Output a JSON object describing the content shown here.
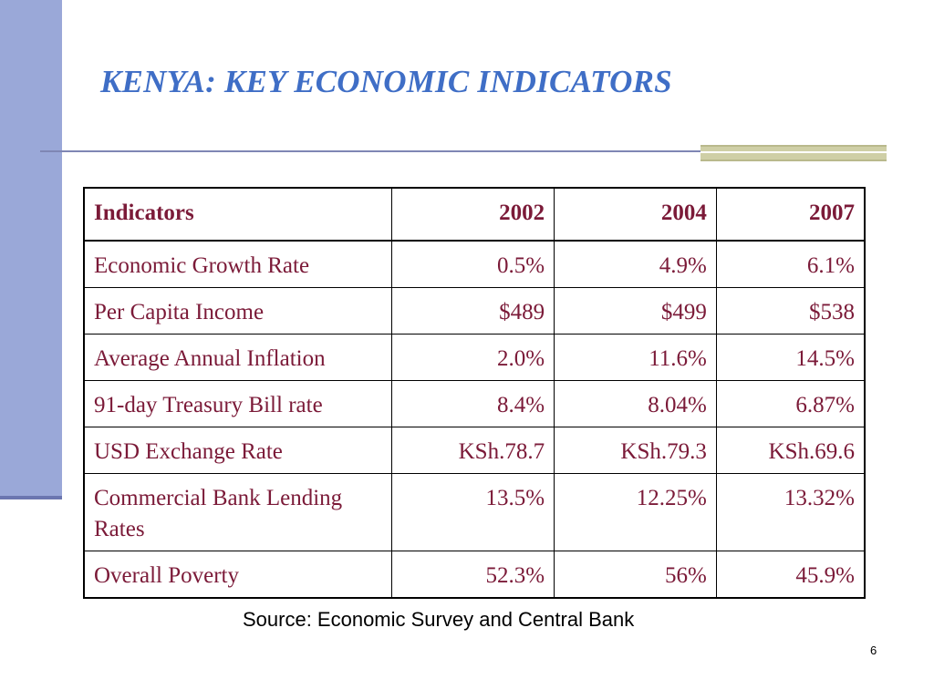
{
  "slide": {
    "title": "KENYA: KEY ECONOMIC INDICATORS",
    "source": "Source: Economic Survey and Central Bank",
    "page_number": "6"
  },
  "table": {
    "headers": [
      "Indicators",
      "2002",
      "2004",
      "2007"
    ],
    "rows": [
      [
        "Economic Growth Rate",
        "0.5%",
        "4.9%",
        "6.1%"
      ],
      [
        "Per Capita Income",
        "$489",
        "$499",
        "$538"
      ],
      [
        "Average Annual Inflation",
        "2.0%",
        "11.6%",
        "14.5%"
      ],
      [
        "91-day Treasury Bill rate",
        "8.4%",
        "8.04%",
        "6.87%"
      ],
      [
        "USD Exchange Rate",
        "KSh.78.7",
        "KSh.79.3",
        "KSh.69.6"
      ],
      [
        "Commercial Bank Lending Rates",
        "13.5%",
        "12.25%",
        "13.32%"
      ],
      [
        "Overall Poverty",
        "52.3%",
        "56%",
        "45.9%"
      ]
    ]
  },
  "colors": {
    "title": "#3f6ec6",
    "table_text": "#7b1a38",
    "left_bar": "#9aa8d8",
    "accent": "#cfcfa6"
  }
}
